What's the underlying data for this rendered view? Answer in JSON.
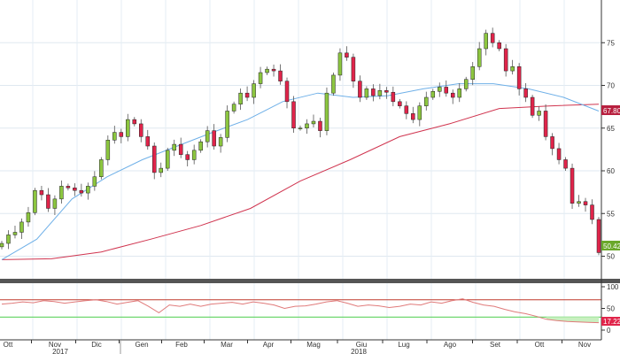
{
  "chart_data": {
    "type": "candlestick",
    "price_axis": {
      "ticks": [
        50,
        55,
        60,
        65,
        70,
        75
      ],
      "range": [
        48.5,
        80
      ]
    },
    "rsi_axis": {
      "ticks": [
        0,
        50,
        100
      ],
      "range": [
        0,
        100
      ],
      "upper_band": 70,
      "lower_band": 30
    },
    "x_ticks": [
      "Ott",
      "Nov",
      "Dic",
      "Gen",
      "Feb",
      "Mar",
      "Apr",
      "Mag",
      "Giu",
      "Lug",
      "Ago",
      "Set",
      "Ott",
      "Nov"
    ],
    "years": [
      "2017",
      "2018"
    ],
    "grid": true,
    "closes": [
      51.5,
      52.5,
      52.8,
      54,
      55.1,
      57.7,
      57.2,
      55.6,
      56.7,
      58.2,
      58,
      57.7,
      57.4,
      58.2,
      59.3,
      61.3,
      63.6,
      64.5,
      64,
      66,
      65.5,
      64,
      62.9,
      59.8,
      60.3,
      62.4,
      63.1,
      61.9,
      61.3,
      62.4,
      63.4,
      64.7,
      62.9,
      63.9,
      67,
      67.8,
      69.1,
      68.6,
      70.2,
      71.5,
      71.9,
      71.7,
      70.5,
      68.1,
      65,
      65,
      65.5,
      65.8,
      64.7,
      69.1,
      71.2,
      73.8,
      73.3,
      70.5,
      68.6,
      69.6,
      68.8,
      69.4,
      69.2,
      68.1,
      67.6,
      66.7,
      66,
      67.6,
      68.6,
      69.3,
      69.8,
      69.1,
      68.6,
      69.6,
      70.7,
      72.2,
      74.3,
      76.1,
      75,
      74.3,
      71.7,
      72.2,
      69.6,
      68.6,
      66.5,
      67,
      64,
      62.6,
      61.3,
      60.3,
      56.2,
      56.4,
      56,
      54.3,
      50.42
    ],
    "ma_short": [
      49.6,
      52,
      56.7,
      59.3,
      61.3,
      62.9,
      64.5,
      66,
      68.1,
      69.1,
      68.6,
      68.8,
      69.6,
      70.2,
      70.2,
      69.6,
      68.6,
      67
    ],
    "ma_long": [
      49.6,
      49.7,
      50.5,
      52,
      53.6,
      55.6,
      58.8,
      61.3,
      64,
      65.5,
      67.3,
      67.6,
      67.8031
    ],
    "rsi": [
      60,
      62,
      65,
      63,
      68,
      66,
      62,
      65,
      68,
      70,
      66,
      60,
      64,
      68,
      55,
      40,
      58,
      55,
      60,
      55,
      60,
      62,
      64,
      60,
      65,
      62,
      58,
      50,
      55,
      56,
      60,
      65,
      68,
      62,
      55,
      58,
      56,
      52,
      55,
      60,
      58,
      65,
      62,
      68,
      72,
      64,
      58,
      55,
      48,
      42,
      38,
      32,
      25,
      22,
      20,
      19,
      18,
      17.2249
    ],
    "last_labels": {
      "ma_long": "67.8031",
      "close": "50.4200",
      "rsi": "17.2249"
    },
    "colors": {
      "up": "#8cc63f",
      "down": "#e0244a",
      "ma_short": "#6fb0e8",
      "ma_long": "#d0344f",
      "rsi": "#e07a7a",
      "band_upper": "#c0392b",
      "band_lower": "#5fd35f"
    }
  }
}
